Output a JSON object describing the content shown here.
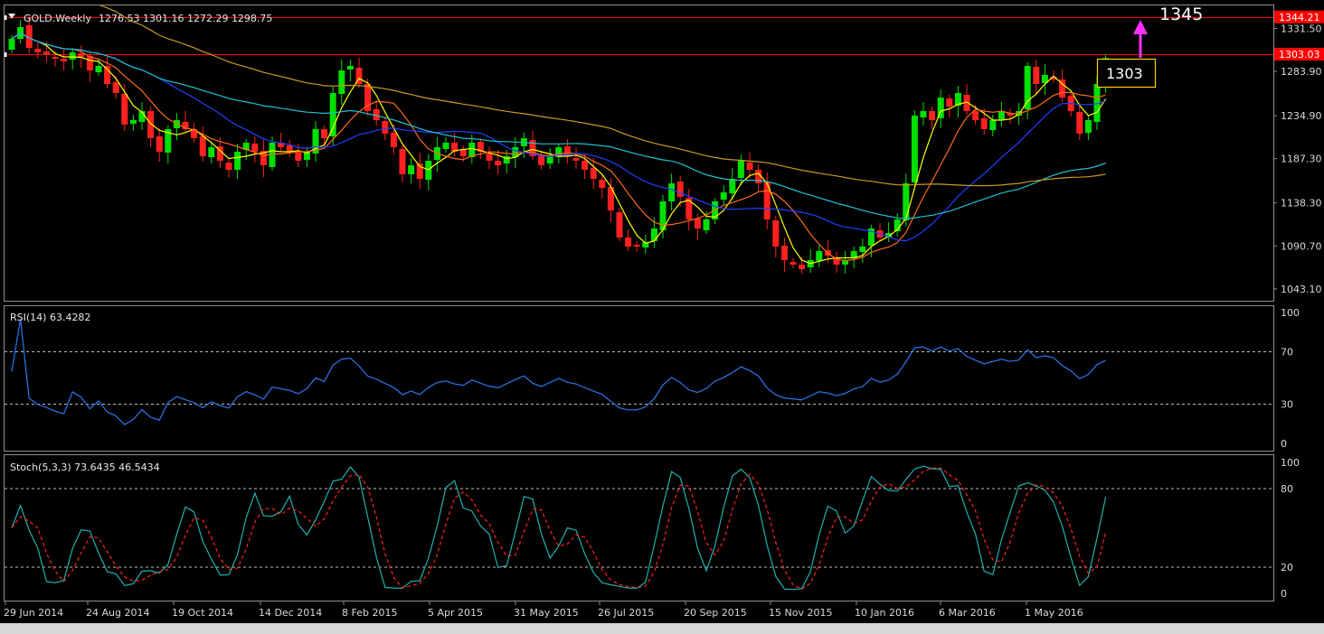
{
  "header": {
    "symbol": "GOLD.Weekly",
    "ohlc": "1276.53 1301.16 1272.29 1298.75"
  },
  "colors": {
    "background": "#000000",
    "bull": "#00e000",
    "bear": "#ff2020",
    "ma_fast": "#ffff00",
    "ma_mid": "#ff6a1a",
    "ma_blue": "#2040ff",
    "ma_cyan": "#20c0d0",
    "ma_slow": "#c89a20",
    "level_line": "#ff0000",
    "rsi": "#2a6fe0",
    "stoch_main": "#20b0b0",
    "stoch_signal": "#ff2020",
    "arrow": "#ff30ff"
  },
  "chart_data": [
    {
      "type": "candlestick",
      "panel": "price",
      "ylim": [
        1030,
        1357
      ],
      "y_ticks": [
        "1331.50",
        "1283.90",
        "1234.90",
        "1187.30",
        "1138.30",
        "1090.70",
        "1043.10"
      ],
      "y_tick_values": [
        1331.5,
        1283.9,
        1234.9,
        1187.3,
        1138.3,
        1090.7,
        1043.1
      ],
      "x_labels": [
        "29 Jun 2014",
        "24 Aug 2014",
        "19 Oct 2014",
        "14 Dec 2014",
        "8 Feb 2015",
        "5 Apr 2015",
        "31 May 2015",
        "26 Jul 2015",
        "20 Sep 2015",
        "15 Nov 2015",
        "10 Jan 2016",
        "6 Mar 2016",
        "1 May 2016"
      ],
      "levels": [
        {
          "label": "1344.21",
          "value": 1344.21
        },
        {
          "label": "1303.03",
          "value": 1303.03
        }
      ],
      "annotations": [
        {
          "text": "1345",
          "value": 1345
        },
        {
          "text": "1303",
          "value": 1303
        }
      ],
      "closes": [
        1320,
        1333,
        1310,
        1305,
        1302,
        1298,
        1295,
        1305,
        1300,
        1285,
        1290,
        1270,
        1260,
        1225,
        1230,
        1240,
        1210,
        1195,
        1220,
        1230,
        1220,
        1210,
        1190,
        1200,
        1185,
        1175,
        1195,
        1205,
        1195,
        1180,
        1205,
        1200,
        1195,
        1185,
        1195,
        1220,
        1210,
        1260,
        1285,
        1290,
        1270,
        1240,
        1230,
        1215,
        1200,
        1170,
        1180,
        1165,
        1185,
        1200,
        1205,
        1195,
        1190,
        1205,
        1195,
        1185,
        1180,
        1190,
        1200,
        1210,
        1190,
        1180,
        1190,
        1200,
        1190,
        1185,
        1175,
        1165,
        1155,
        1130,
        1100,
        1090,
        1090,
        1095,
        1110,
        1140,
        1160,
        1145,
        1120,
        1110,
        1120,
        1140,
        1150,
        1165,
        1185,
        1175,
        1160,
        1120,
        1090,
        1075,
        1070,
        1065,
        1075,
        1085,
        1080,
        1070,
        1075,
        1085,
        1090,
        1110,
        1100,
        1105,
        1120,
        1160,
        1235,
        1240,
        1230,
        1255,
        1245,
        1260,
        1240,
        1230,
        1220,
        1230,
        1240,
        1235,
        1240,
        1290,
        1270,
        1280,
        1275,
        1255,
        1240,
        1215,
        1230,
        1270,
        1298.75
      ],
      "series": [
        {
          "name": "RSI(14) 63.4282",
          "panel": "rsi",
          "ylim": [
            0,
            100
          ],
          "levels": [
            30,
            70
          ],
          "y_ticks": [
            "100",
            "70",
            "30",
            "0"
          ],
          "value": 63.4282
        },
        {
          "name": "Stoch(5,3,3) 73.6435 46.5434",
          "panel": "stoch",
          "ylim": [
            0,
            100
          ],
          "levels": [
            20,
            80
          ],
          "y_ticks": [
            "100",
            "80",
            "20",
            "0"
          ],
          "main": 73.6435,
          "signal": 46.5434
        }
      ]
    }
  ]
}
